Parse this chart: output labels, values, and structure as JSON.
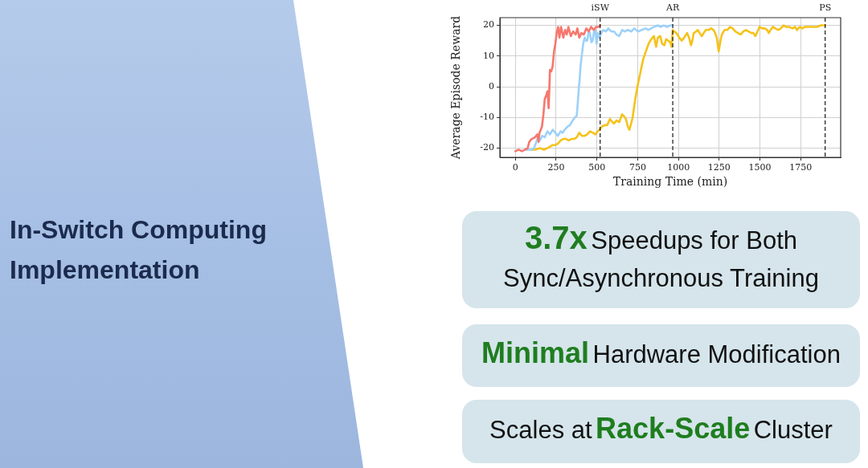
{
  "chart_data": [
    {
      "type": "line",
      "xlabel": "Training Time (min)",
      "ylabel": "Average Episode Reward",
      "xlim": [
        -95,
        1995
      ],
      "xticks": [
        0,
        250,
        500,
        750,
        1000,
        1250,
        1500,
        1750
      ],
      "ylim": [
        -23,
        22.5
      ],
      "yticks": [
        -20,
        -10,
        0,
        10,
        20
      ],
      "grid": true,
      "ref_lines": [
        {
          "axis": "x",
          "value": 520,
          "label": "iSW",
          "color": "#000000",
          "line_style": "dashed"
        },
        {
          "axis": "x",
          "value": 965,
          "label": "AR",
          "color": "#000000",
          "line_style": "dashed"
        },
        {
          "axis": "x",
          "value": 1900,
          "label": "PS",
          "color": "#000000",
          "line_style": "dashed"
        }
      ],
      "series": [
        {
          "color": "#f7776d",
          "x": [
            0,
            20,
            40,
            60,
            75,
            85,
            100,
            120,
            135,
            142,
            148,
            163,
            172,
            180,
            188,
            196,
            200,
            204,
            208,
            212,
            220,
            228,
            237,
            245,
            253,
            262,
            270,
            280,
            294,
            305,
            315,
            325,
            340,
            355,
            370,
            380,
            392,
            405,
            420,
            435,
            450,
            465,
            480,
            495,
            510,
            520
          ],
          "values": [
            -21,
            -20.5,
            -21,
            -20.5,
            -20,
            -18,
            -17,
            -16.5,
            -15.5,
            -18,
            -15,
            -13,
            -9,
            -4,
            -3,
            -1.5,
            -4,
            -7,
            -1,
            5.5,
            5,
            6.5,
            11.5,
            14,
            17.5,
            19.5,
            16,
            19.5,
            16,
            18.5,
            17,
            19.5,
            16.5,
            18,
            17,
            19,
            16,
            17.5,
            17,
            19,
            18,
            19.5,
            18.5,
            19.5,
            19.5,
            20
          ]
        },
        {
          "color": "#9dd1f9",
          "x": [
            60,
            80,
            100,
            114,
            125,
            135,
            150,
            165,
            180,
            196,
            212,
            229,
            245,
            260,
            278,
            290,
            302,
            320,
            335,
            351,
            365,
            376,
            383,
            389,
            395,
            400,
            408,
            416,
            425,
            433,
            441,
            449,
            457,
            466,
            474,
            482,
            490,
            498,
            507,
            515,
            523,
            531,
            539,
            555,
            570,
            588,
            605,
            620,
            637,
            655,
            670,
            690,
            710,
            730,
            752,
            775,
            800,
            815,
            833,
            850,
            874,
            890,
            910,
            930,
            950,
            965
          ],
          "values": [
            -20.5,
            -20.5,
            -20.5,
            -20,
            -18.5,
            -17,
            -17.5,
            -16,
            -16.5,
            -14.5,
            -15.5,
            -14,
            -15,
            -16,
            -14.5,
            -15,
            -14,
            -13,
            -12.5,
            -11,
            -10,
            -9.5,
            -5,
            -0.5,
            3,
            7,
            10.5,
            14,
            16,
            15,
            15,
            18,
            17.5,
            14.5,
            15,
            18,
            18.5,
            14,
            17.5,
            16,
            17,
            18,
            18.5,
            18,
            19,
            18,
            18,
            17,
            16.5,
            18.5,
            18,
            18.5,
            18,
            19,
            18,
            18.5,
            19,
            18.5,
            19,
            19.5,
            20,
            19.5,
            20,
            19.5,
            20,
            20
          ]
        },
        {
          "color": "#f5c21b",
          "x": [
            98,
            120,
            150,
            175,
            196,
            212,
            229,
            245,
            261,
            278,
            294,
            310,
            327,
            345,
            360,
            376,
            392,
            408,
            425,
            441,
            457,
            474,
            490,
            505,
            515,
            530,
            547,
            563,
            580,
            595,
            605,
            620,
            637,
            654,
            665,
            678,
            690,
            699,
            710,
            719,
            735,
            752,
            768,
            784,
            800,
            817,
            833,
            850,
            863,
            874,
            888,
            900,
            913,
            925,
            937,
            950,
            958,
            965,
            975,
            987,
            1005,
            1020,
            1035,
            1053,
            1065,
            1077,
            1085,
            1094,
            1110,
            1118,
            1130,
            1143,
            1155,
            1168,
            1185,
            1201,
            1215,
            1225,
            1235,
            1247,
            1258,
            1266,
            1283,
            1300,
            1316,
            1332,
            1349,
            1365,
            1382,
            1398,
            1414,
            1430,
            1447,
            1460,
            1472,
            1485,
            1497,
            1515,
            1530,
            1545,
            1554,
            1565,
            1579,
            1595,
            1612,
            1628,
            1645,
            1660,
            1678,
            1700,
            1715,
            1727,
            1745,
            1760,
            1776,
            1800,
            1826,
            1850,
            1875,
            1900
          ],
          "values": [
            -20.5,
            -20.5,
            -20,
            -20.5,
            -20,
            -19.5,
            -19,
            -19,
            -18.5,
            -17.5,
            -17,
            -17,
            -17.5,
            -17,
            -17,
            -16.5,
            -15,
            -16,
            -16,
            -15.5,
            -14.5,
            -15,
            -15.5,
            -14.5,
            -14,
            -13,
            -12.5,
            -12.5,
            -10.5,
            -11.5,
            -12,
            -11,
            -11.5,
            -9,
            -9.5,
            -10.5,
            -13,
            -14,
            -12,
            -10,
            -4,
            1,
            5,
            9,
            11.5,
            14,
            15.5,
            16.5,
            13,
            16,
            16.5,
            14,
            13.5,
            15.5,
            15,
            14.5,
            13,
            18.5,
            18,
            17.5,
            16,
            15,
            16,
            17.5,
            16,
            13.5,
            15,
            17.5,
            18,
            18.5,
            17.5,
            16.5,
            17.5,
            18.5,
            18.5,
            19,
            18.5,
            17.5,
            16,
            11.5,
            15,
            17,
            18.5,
            18.5,
            19.5,
            19,
            18,
            17.5,
            17,
            18,
            18.5,
            18,
            17.5,
            17.5,
            16.5,
            18,
            19.5,
            19,
            19,
            18.5,
            17.5,
            18.5,
            19.5,
            19,
            18.5,
            19,
            20,
            19.5,
            19.5,
            19,
            19.5,
            18.5,
            19.5,
            19,
            19.5,
            19.5,
            19.5,
            19.5,
            20,
            20
          ]
        }
      ]
    },
    {
      "type": "other",
      "title": "In-Switch Computing Implementation",
      "annotations": [
        "3.7x",
        "Speedups for Both",
        "Sync/Asynchronous Training",
        "Minimal",
        "Hardware Modification",
        "Scales at",
        "Rack-Scale",
        "Cluster"
      ]
    }
  ]
}
